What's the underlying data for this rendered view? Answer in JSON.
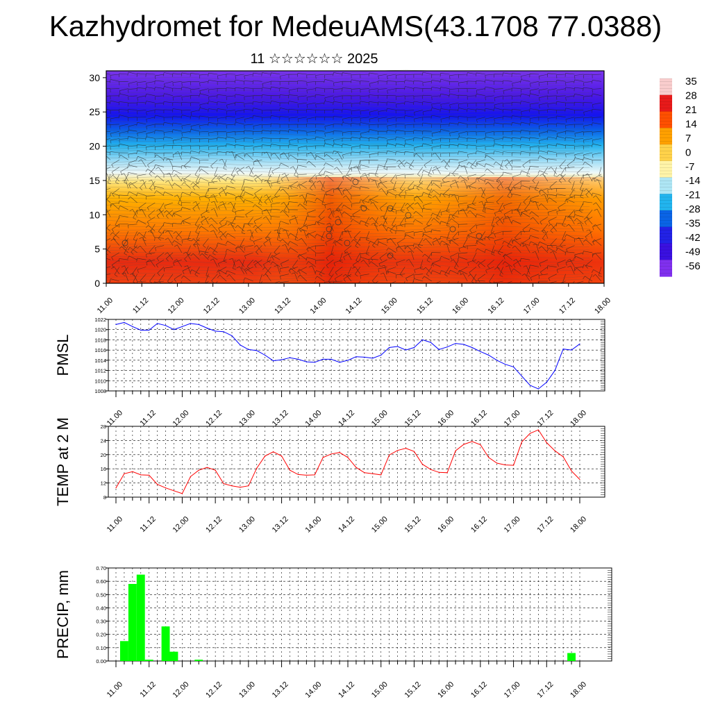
{
  "header": {
    "title": "Kazhydromet for MedeuAMS(43.1708 77.0388)",
    "subtitle": "11 ☆☆☆☆☆☆ 2025"
  },
  "time_ticks": [
    "11.00",
    "11.12",
    "12.00",
    "12.12",
    "13.00",
    "13.12",
    "14.00",
    "14.12",
    "15.00",
    "15.12",
    "16.00",
    "16.12",
    "17.00",
    "17.12",
    "18.00"
  ],
  "chart_data": [
    {
      "type": "heatmap",
      "name": "",
      "x_ticks": [
        "11.00",
        "11.12",
        "12.00",
        "12.12",
        "13.00",
        "13.12",
        "14.00",
        "14.12",
        "15.00",
        "15.12",
        "16.00",
        "16.12",
        "17.00",
        "17.12",
        "18.00"
      ],
      "y_ticks": [
        0,
        5,
        10,
        15,
        20,
        25,
        30
      ],
      "ylim": [
        0,
        31
      ],
      "colorbar_labels": [
        "35",
        "28",
        "21",
        "14",
        "7",
        "0",
        "-7",
        "-14",
        "-21",
        "-28",
        "-35",
        "-42",
        "-49",
        "-56"
      ],
      "colorbar_colors": [
        "#f9cdcd",
        "#e81a1a",
        "#ff5000",
        "#ffa000",
        "#ffd24a",
        "#fff4a8",
        "#aee6f5",
        "#22b4ee",
        "#0a64e6",
        "#2222e6",
        "#3a10e0",
        "#8030ee"
      ],
      "overlay": "wind barbs"
    },
    {
      "type": "line",
      "ylabel": "PMSL",
      "x_ticks": [
        "11.00",
        "11.12",
        "12.00",
        "12.12",
        "13.00",
        "13.12",
        "14.00",
        "14.12",
        "15.00",
        "15.12",
        "16.00",
        "16.12",
        "17.00",
        "17.12",
        "18.00"
      ],
      "ylim": [
        1008,
        1022
      ],
      "y_ticks": [
        1008,
        1010,
        1012,
        1014,
        1016,
        1018,
        1020,
        1022
      ],
      "color": "#0000ff",
      "values": [
        1021,
        1021.4,
        1020.6,
        1019.9,
        1019.9,
        1021.2,
        1020.8,
        1020.0,
        1020.6,
        1021.2,
        1021.0,
        1020.3,
        1019.7,
        1019.6,
        1018.8,
        1017.0,
        1016.1,
        1015.9,
        1015.0,
        1013.9,
        1014.1,
        1014.5,
        1014.2,
        1013.7,
        1013.6,
        1014.2,
        1014.2,
        1013.6,
        1014.0,
        1014.7,
        1014.6,
        1014.4,
        1015.0,
        1016.5,
        1016.7,
        1016.0,
        1016.5,
        1018.0,
        1017.5,
        1016.1,
        1016.6,
        1017.3,
        1017.1,
        1016.5,
        1015.7,
        1015.0,
        1014.0,
        1013.2,
        1012.7,
        1010.9,
        1009.1,
        1008.4,
        1009.7,
        1012.0,
        1016.2,
        1016.0,
        1017.2
      ]
    },
    {
      "type": "line",
      "ylabel": "TEMP at 2 M",
      "x_ticks": [
        "11.00",
        "11.12",
        "12.00",
        "12.12",
        "13.00",
        "13.12",
        "14.00",
        "14.12",
        "15.00",
        "15.12",
        "16.00",
        "16.12",
        "17.00",
        "17.12",
        "18.00"
      ],
      "ylim": [
        8,
        28
      ],
      "y_ticks": [
        8,
        12,
        16,
        20,
        24,
        28
      ],
      "color": "#ff0000",
      "values": [
        10.6,
        14.6,
        15.2,
        14.3,
        14.2,
        11.6,
        10.6,
        9.8,
        9.0,
        13.8,
        15.6,
        16.4,
        15.6,
        11.8,
        11.2,
        10.8,
        11.2,
        16.2,
        19.6,
        20.8,
        19.6,
        15.6,
        14.4,
        14.2,
        14.3,
        19.2,
        20.2,
        20.6,
        19.2,
        16.4,
        14.9,
        14.6,
        14.3,
        19.9,
        21.2,
        21.8,
        20.9,
        17.3,
        15.8,
        15.0,
        14.9,
        21.1,
        22.9,
        23.7,
        22.8,
        19.2,
        17.6,
        17.1,
        17.0,
        23.6,
        26.0,
        27.0,
        23.4,
        21.1,
        19.4,
        15.4,
        13.0
      ]
    },
    {
      "type": "bar",
      "ylabel": "PRECIP, mm",
      "x_ticks": [
        "11.00",
        "11.12",
        "12.00",
        "12.12",
        "13.00",
        "13.12",
        "14.00",
        "14.12",
        "15.00",
        "15.12",
        "16.00",
        "16.12",
        "17.00",
        "17.12",
        "18.00"
      ],
      "ylim": [
        0,
        0.7
      ],
      "y_ticks": [
        "0.00",
        "0.10",
        "0.20",
        "0.30",
        "0.40",
        "0.50",
        "0.60",
        "0.70"
      ],
      "color": "#00ff00",
      "values": [
        0,
        0.15,
        0.58,
        0.65,
        0.01,
        0,
        0.26,
        0.07,
        0,
        0,
        0.01,
        0,
        0,
        0,
        0,
        0,
        0,
        0,
        0,
        0,
        0,
        0,
        0,
        0,
        0,
        0,
        0,
        0,
        0,
        0,
        0,
        0,
        0,
        0,
        0,
        0,
        0,
        0,
        0,
        0,
        0,
        0,
        0,
        0,
        0,
        0,
        0,
        0,
        0,
        0,
        0,
        0,
        0,
        0,
        0,
        0.06,
        0
      ]
    }
  ]
}
